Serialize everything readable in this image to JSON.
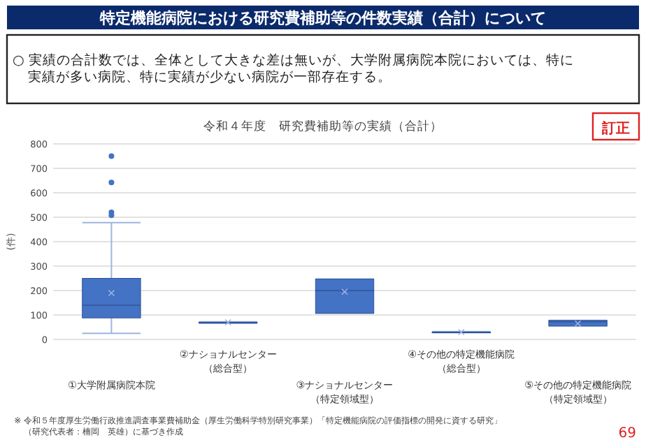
{
  "chart_data": {
    "type": "box",
    "title": "特定機能病院における研究費補助等の件数実績（合計）について",
    "subtitle": "令和４年度　研究費補助等の実績（合計）",
    "ylabel": "(件)",
    "categories": [
      "①大学附属病院本院",
      "②ナショナルセンター（総合型）",
      "③ナショナルセンター（特定領域型）",
      "④その他の特定機能病院（総合型）",
      "⑤その他の特定機能病院（特定領域型）"
    ],
    "boxes": [
      {
        "low": 25,
        "q1": 88,
        "median": 140,
        "q3": 250,
        "high": 478,
        "mean": 190,
        "outliers": [
          750,
          642,
          520,
          508
        ]
      },
      {
        "low": 66,
        "q1": 68,
        "median": 70,
        "q3": 70,
        "high": 72,
        "mean": 70
      },
      {
        "low": 107,
        "q1": 107,
        "median": 200,
        "q3": 247,
        "high": 247,
        "mean": 195
      },
      {
        "low": 28,
        "q1": 30,
        "median": 30,
        "q3": 30,
        "high": 32,
        "mean": 30
      },
      {
        "low": 55,
        "q1": 55,
        "median": 72,
        "q3": 78,
        "high": 78,
        "mean": 65
      }
    ],
    "color": "#4472c4",
    "ylim": [
      0,
      800
    ],
    "yticks": [
      0,
      100,
      200,
      300,
      400,
      500,
      600,
      700,
      800
    ],
    "grid": "y",
    "annotations": [
      "○ 実績の合計数では、全体として大きな差は無いが、大学附属病院本院においては、特に実績が多い病院、特に実績が少ない病院が一部存在する。",
      "訂正",
      "※ 令和５年度厚生労働行政推進調査事業費補助金（厚生労働科学特別研究事業）「特定機能病院の評価指標の開発に資する研究」（研究代表者：楠岡　英雄）に基づき作成",
      "69"
    ]
  }
}
